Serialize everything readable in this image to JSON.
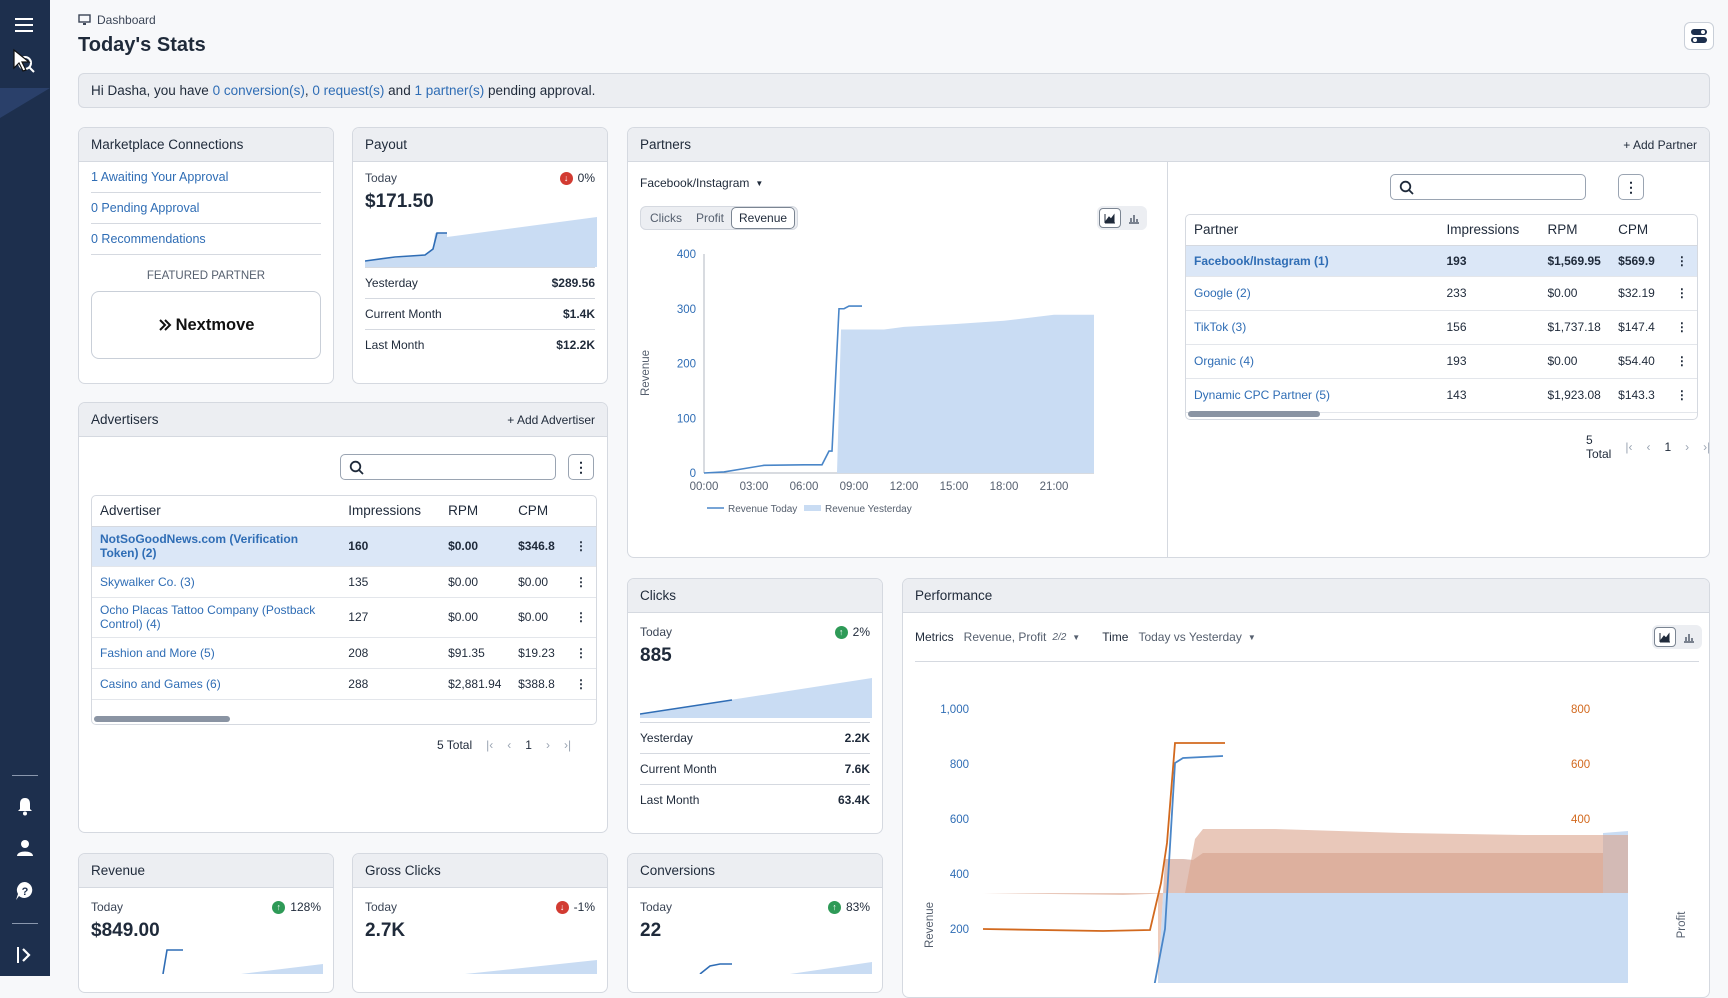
{
  "breadcrumb": "Dashboard",
  "page_title": "Today's Stats",
  "banner": {
    "prefix": "Hi Dasha, you have ",
    "conv": "0 conversion(s)",
    "sep1": ", ",
    "req": "0 request(s)",
    "sep2": " and ",
    "part": "1 partner(s)",
    "suffix": " pending approval."
  },
  "marketplace": {
    "title": "Marketplace Connections",
    "items": [
      "1 Awaiting Your Approval",
      "0 Pending Approval",
      "0 Recommendations"
    ],
    "featured_label": "FEATURED PARTNER",
    "featured_name": "Nextmove"
  },
  "payout": {
    "title": "Payout",
    "today_label": "Today",
    "change": "0%",
    "today_value": "$171.50",
    "rows": [
      {
        "label": "Yesterday",
        "value": "$289.56"
      },
      {
        "label": "Current Month",
        "value": "$1.4K"
      },
      {
        "label": "Last Month",
        "value": "$12.2K"
      }
    ]
  },
  "advertisers": {
    "title": "Advertisers",
    "add_label": "Add Advertiser",
    "columns": [
      "Advertiser",
      "Impressions",
      "RPM",
      "CPM"
    ],
    "rows": [
      {
        "name": "NotSoGoodNews.com (Verification Token) (2)",
        "impressions": "160",
        "rpm": "$0.00",
        "cpm": "$346.8"
      },
      {
        "name": "Skywalker Co. (3)",
        "impressions": "135",
        "rpm": "$0.00",
        "cpm": "$0.00"
      },
      {
        "name": "Ocho Placas Tattoo Company (Postback Control) (4)",
        "impressions": "127",
        "rpm": "$0.00",
        "cpm": "$0.00"
      },
      {
        "name": "Fashion and More (5)",
        "impressions": "208",
        "rpm": "$91.35",
        "cpm": "$19.23"
      },
      {
        "name": "Casino and Games (6)",
        "impressions": "288",
        "rpm": "$2,881.94",
        "cpm": "$388.8"
      }
    ],
    "total": "5 Total",
    "page": "1"
  },
  "partners": {
    "title": "Partners",
    "add_label": "Add Partner",
    "source": "Facebook/Instagram",
    "tabs": [
      "Clicks",
      "Profit",
      "Revenue"
    ],
    "active_tab": "Revenue",
    "columns": [
      "Partner",
      "Impressions",
      "RPM",
      "CPM"
    ],
    "rows": [
      {
        "name": "Facebook/Instagram (1)",
        "impressions": "193",
        "rpm": "$1,569.95",
        "cpm": "$569.9"
      },
      {
        "name": "Google (2)",
        "impressions": "233",
        "rpm": "$0.00",
        "cpm": "$32.19"
      },
      {
        "name": "TikTok (3)",
        "impressions": "156",
        "rpm": "$1,737.18",
        "cpm": "$147.4"
      },
      {
        "name": "Organic (4)",
        "impressions": "193",
        "rpm": "$0.00",
        "cpm": "$54.40"
      },
      {
        "name": "Dynamic CPC Partner (5)",
        "impressions": "143",
        "rpm": "$1,923.08",
        "cpm": "$143.3"
      }
    ],
    "total": "5 Total",
    "page": "1",
    "chart": {
      "ylabel": "Revenue",
      "yticks": [
        "400",
        "300",
        "200",
        "100",
        "0"
      ],
      "xticks": [
        "00:00",
        "03:00",
        "06:00",
        "09:00",
        "12:00",
        "15:00",
        "18:00",
        "21:00"
      ],
      "legend_today": "Revenue Today",
      "legend_yesterday": "Revenue Yesterday"
    }
  },
  "clicks": {
    "title": "Clicks",
    "today_label": "Today",
    "change": "2%",
    "today_value": "885",
    "rows": [
      {
        "label": "Yesterday",
        "value": "2.2K"
      },
      {
        "label": "Current Month",
        "value": "7.6K"
      },
      {
        "label": "Last Month",
        "value": "63.4K"
      }
    ]
  },
  "performance": {
    "title": "Performance",
    "metrics_label": "Metrics",
    "metrics_value": "Revenue, Profit",
    "metrics_count": "2/2",
    "time_label": "Time",
    "time_value": "Today vs Yesterday",
    "yleft_label": "Revenue",
    "yright_label": "Profit",
    "yleft_ticks": [
      "1,000",
      "800",
      "600",
      "400",
      "200"
    ],
    "yright_ticks": [
      "800",
      "600",
      "400",
      "200",
      "0"
    ]
  },
  "revenue": {
    "title": "Revenue",
    "today_label": "Today",
    "change": "128%",
    "today_value": "$849.00"
  },
  "gross_clicks": {
    "title": "Gross Clicks",
    "today_label": "Today",
    "change": "-1%",
    "today_value": "2.7K"
  },
  "conversions": {
    "title": "Conversions",
    "today_label": "Today",
    "change": "83%",
    "today_value": "22"
  },
  "colors": {
    "accent": "#2f6db5",
    "area": "#c9dcf3",
    "profit": "#d2691e",
    "sidebar": "#1d2f4d"
  },
  "chart_data": [
    {
      "type": "line",
      "title": "",
      "ylabel": "Revenue",
      "xlabel": "",
      "ylim": [
        0,
        400
      ],
      "x": [
        "00:00",
        "03:00",
        "06:00",
        "09:00",
        "12:00",
        "15:00",
        "18:00",
        "21:00"
      ],
      "series": [
        {
          "name": "Revenue Today",
          "values": [
            0,
            10,
            15,
            310,
            null,
            null,
            null,
            null
          ]
        },
        {
          "name": "Revenue Yesterday",
          "values": [
            0,
            0,
            0,
            262,
            267,
            272,
            278,
            289
          ]
        }
      ]
    },
    {
      "type": "line",
      "title": "",
      "ylabel": "Revenue",
      "y2label": "Profit",
      "ylim": [
        0,
        1000
      ],
      "y2lim": [
        0,
        800
      ],
      "series": [
        {
          "name": "Revenue",
          "values": [
            200,
            200,
            200,
            850,
            850
          ]
        },
        {
          "name": "Profit",
          "values": [
            0,
            0,
            0,
            880,
            880
          ]
        }
      ]
    }
  ]
}
